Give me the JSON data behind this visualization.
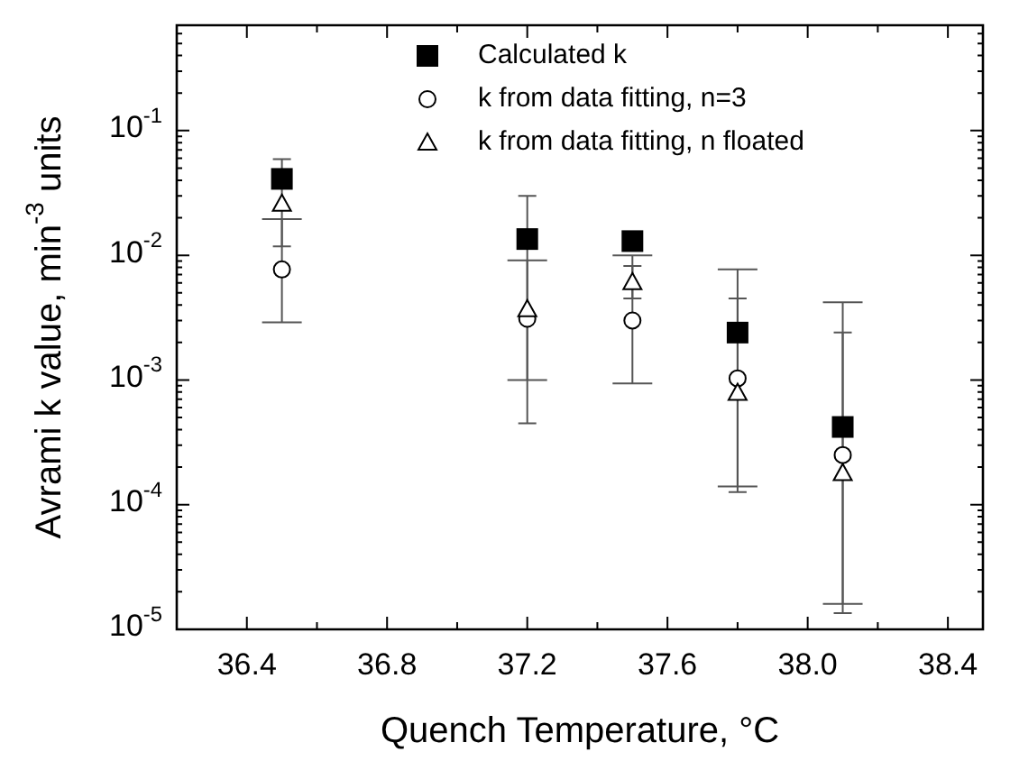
{
  "chart_data": {
    "type": "scatter",
    "xlabel": "Quench Temperature, °C",
    "ylabel": "Avrami k value, min$^{-3}$ units",
    "x": [
      36.5,
      37.2,
      37.5,
      37.8,
      38.1
    ],
    "series": [
      {
        "name": "Calculated k",
        "color": "#000000",
        "marker": "square",
        "values": [
          0.041,
          0.0135,
          0.013,
          0.0024,
          0.00042
        ]
      },
      {
        "name": "k from data fitting, n=3",
        "color": "#000000",
        "marker": "circle",
        "values": [
          0.0077,
          0.0031,
          0.003,
          0.00103,
          0.00025
        ],
        "errors": [
          [
            0.0029,
            0.0195
          ],
          [
            0.001,
            0.0091
          ],
          [
            0.00094,
            0.01
          ],
          [
            0.00014,
            0.0077
          ],
          [
            1.6e-05,
            0.0042
          ]
        ]
      },
      {
        "name": "k from data fitting, n floated",
        "color": "#000000",
        "marker": "triangle",
        "values": [
          0.026,
          0.0037,
          0.0061,
          0.00079,
          0.00018
        ],
        "errors": [
          [
            0.0118,
            0.059
          ],
          [
            0.00045,
            0.03
          ],
          [
            0.0045,
            0.0082
          ],
          [
            0.000126,
            0.0045
          ],
          [
            1.35e-05,
            0.0024
          ]
        ]
      }
    ],
    "log": "y",
    "grid": false,
    "legend": "top right",
    "xlim": [
      36.2,
      38.5
    ],
    "xticks": [
      36.4,
      {
        "value": 36.6,
        "label": null
      },
      36.8,
      {
        "value": 37.0,
        "label": null
      },
      37.2,
      {
        "value": 37.4,
        "label": null
      },
      37.6,
      {
        "value": 37.8,
        "label": null
      },
      {
        "value": 38.0,
        "label": "38.0"
      },
      {
        "value": 38.2,
        "label": null
      },
      38.4
    ],
    "ylim": [
      1e-05,
      0.7
    ],
    "yticks": [
      {
        "value": 1e-05,
        "label": "10$^{-5}$"
      },
      {
        "value": 2e-05,
        "label": null
      },
      {
        "value": 3e-05,
        "label": null
      },
      {
        "value": 4e-05,
        "label": null
      },
      {
        "value": 5e-05,
        "label": null
      },
      {
        "value": 6e-05,
        "label": null
      },
      {
        "value": 7e-05,
        "label": null
      },
      {
        "value": 8e-05,
        "label": null
      },
      {
        "value": 9e-05,
        "label": null
      },
      {
        "value": 0.0001,
        "label": "10$^{-4}$"
      },
      {
        "value": 0.0002,
        "label": null
      },
      {
        "value": 0.0003,
        "label": null
      },
      {
        "value": 0.0004,
        "label": null
      },
      {
        "value": 0.0005,
        "label": null
      },
      {
        "value": 0.0006,
        "label": null
      },
      {
        "value": 0.0007,
        "label": null
      },
      {
        "value": 0.0008,
        "label": null
      },
      {
        "value": 0.0009,
        "label": null
      },
      {
        "value": 0.001,
        "label": "10$^{-3}$"
      },
      {
        "value": 0.002,
        "label": null
      },
      {
        "value": 0.003,
        "label": null
      },
      {
        "value": 0.004,
        "label": null
      },
      {
        "value": 0.005,
        "label": null
      },
      {
        "value": 0.006,
        "label": null
      },
      {
        "value": 0.007,
        "label": null
      },
      {
        "value": 0.008,
        "label": null
      },
      {
        "value": 0.009,
        "label": null
      },
      {
        "value": 0.01,
        "label": "10$^{-2}$"
      },
      {
        "value": 0.02,
        "label": null
      },
      {
        "value": 0.03,
        "label": null
      },
      {
        "value": 0.04,
        "label": null
      },
      {
        "value": 0.05,
        "label": null
      },
      {
        "value": 0.06,
        "label": null
      },
      {
        "value": 0.07,
        "label": null
      },
      {
        "value": 0.08,
        "label": null
      },
      {
        "value": 0.09,
        "label": null
      },
      {
        "value": 0.1,
        "label": "10$^{-1}$"
      },
      {
        "value": 0.2,
        "label": null
      },
      {
        "value": 0.3,
        "label": null
      },
      {
        "value": 0.4,
        "label": null
      },
      {
        "value": 0.5,
        "label": null
      },
      {
        "value": 0.6,
        "label": null
      }
    ]
  }
}
